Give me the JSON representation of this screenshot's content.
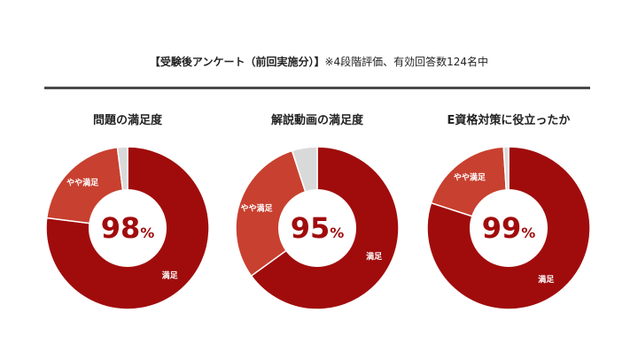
{
  "header": {
    "bold_text": "【受験後アンケート（前回実施分）】",
    "note_text": "※4段階評価、有効回答数124名中"
  },
  "chart_data": [
    {
      "type": "pie",
      "title": "問題の満足度",
      "center_value": "98",
      "center_unit": "%",
      "slices": [
        {
          "label": "満足",
          "value": 77,
          "color": "#a00c0c"
        },
        {
          "label": "やや満足",
          "value": 21,
          "color": "#c8402f"
        },
        {
          "label": "",
          "value": 2,
          "color": "#d9d9d9"
        }
      ]
    },
    {
      "type": "pie",
      "title": "解説動画の満足度",
      "center_value": "95",
      "center_unit": "%",
      "slices": [
        {
          "label": "満足",
          "value": 65,
          "color": "#a00c0c"
        },
        {
          "label": "やや満足",
          "value": 30,
          "color": "#c8402f"
        },
        {
          "label": "",
          "value": 5,
          "color": "#d9d9d9"
        }
      ]
    },
    {
      "type": "pie",
      "title": "E資格対策に役立ったか",
      "center_value": "99",
      "center_unit": "%",
      "slices": [
        {
          "label": "満足",
          "value": 80,
          "color": "#a00c0c"
        },
        {
          "label": "やや満足",
          "value": 19,
          "color": "#c8402f"
        },
        {
          "label": "",
          "value": 1,
          "color": "#d9d9d9"
        }
      ]
    }
  ]
}
